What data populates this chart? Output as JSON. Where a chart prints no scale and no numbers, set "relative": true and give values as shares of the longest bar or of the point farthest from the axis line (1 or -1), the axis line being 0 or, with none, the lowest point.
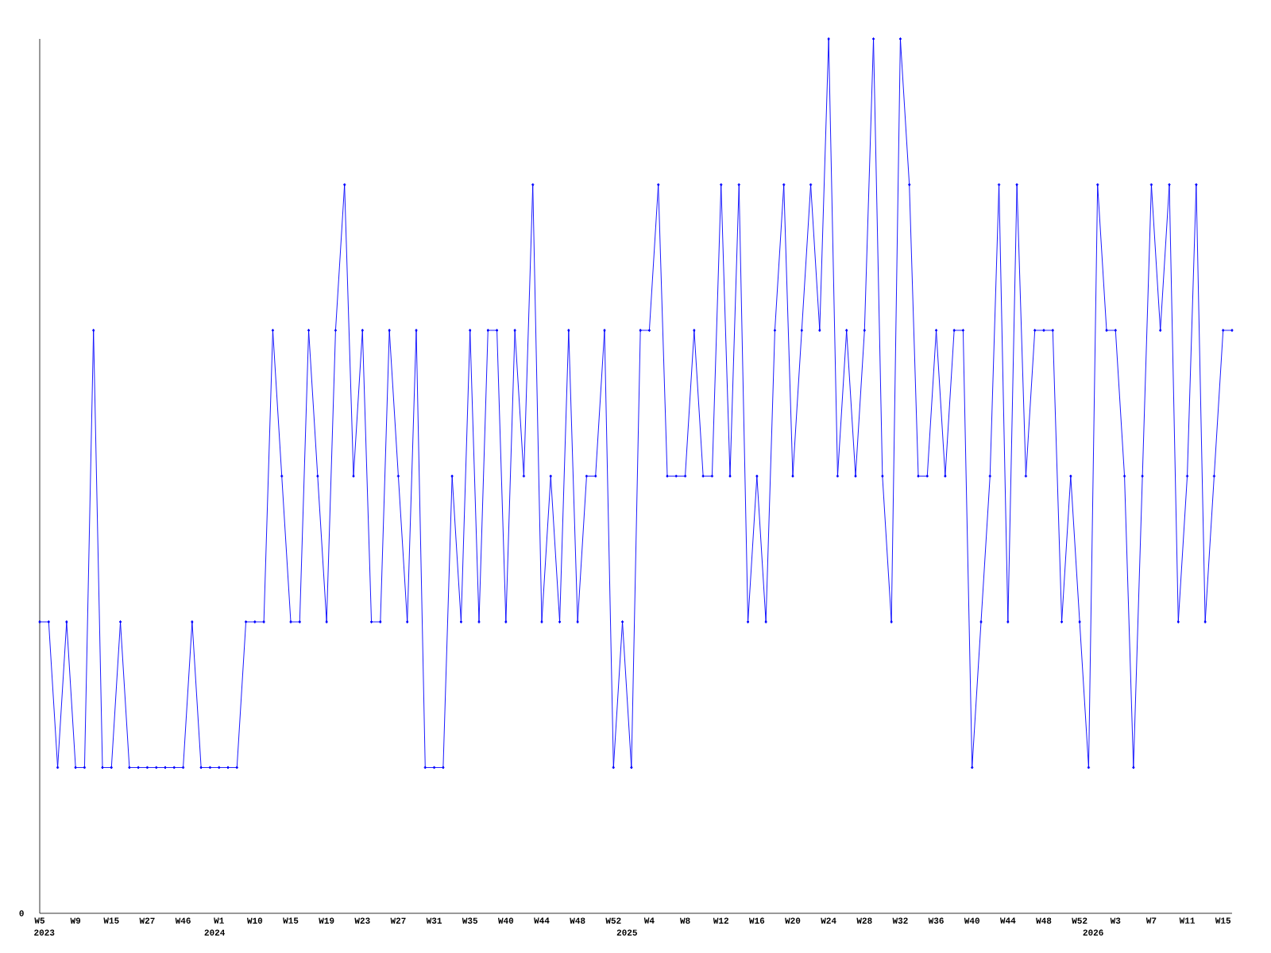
{
  "chart_data": {
    "type": "line",
    "relative": true,
    "color": "#0000ff",
    "marker": "diamond",
    "categories": [
      "W5",
      null,
      null,
      null,
      "W9",
      null,
      null,
      null,
      "W15",
      null,
      null,
      null,
      "W27",
      null,
      null,
      null,
      "W46",
      null,
      null,
      null,
      "W1",
      null,
      null,
      null,
      "W10",
      null,
      null,
      null,
      "W15",
      null,
      null,
      null,
      "W19",
      null,
      null,
      null,
      "W23",
      null,
      null,
      null,
      "W27",
      null,
      null,
      null,
      "W31",
      null,
      null,
      null,
      "W35",
      null,
      null,
      null,
      "W40",
      null,
      null,
      null,
      "W44",
      null,
      null,
      null,
      "W48",
      null,
      null,
      null,
      "W52",
      null,
      null,
      null,
      "W4",
      null,
      null,
      null,
      "W8",
      null,
      null,
      null,
      "W12",
      null,
      null,
      null,
      "W16",
      null,
      null,
      null,
      "W20",
      null,
      null,
      null,
      "W24",
      null,
      null,
      null,
      "W28",
      null,
      null,
      null,
      "W32",
      null,
      null,
      null,
      "W36",
      null,
      null,
      null,
      "W40",
      null,
      null,
      null,
      "W44",
      null,
      null,
      null,
      "W48",
      null,
      null,
      null,
      "W52",
      null,
      null,
      null,
      "W3",
      null,
      null,
      null,
      "W7",
      null,
      null,
      null,
      "W11",
      null,
      null,
      null,
      "W15",
      null
    ],
    "values": [
      0.3333,
      0.3333,
      0.1667,
      0.3333,
      0.1667,
      0.1667,
      0.6667,
      0.1667,
      0.1667,
      0.3333,
      0.1667,
      0.1667,
      0.1667,
      0.1667,
      0.1667,
      0.1667,
      0.1667,
      0.3333,
      0.1667,
      0.1667,
      0.1667,
      0.1667,
      0.1667,
      0.3333,
      0.3333,
      0.3333,
      0.6667,
      0.5,
      0.3333,
      0.3333,
      0.6667,
      0.5,
      0.3333,
      0.6667,
      0.8333,
      0.5,
      0.6667,
      0.3333,
      0.3333,
      0.6667,
      0.5,
      0.3333,
      0.6667,
      0.1667,
      0.1667,
      0.1667,
      0.5,
      0.3333,
      0.6667,
      0.3333,
      0.6667,
      0.6667,
      0.3333,
      0.6667,
      0.5,
      0.8333,
      0.3333,
      0.5,
      0.3333,
      0.6667,
      0.3333,
      0.5,
      0.5,
      0.6667,
      0.1667,
      0.3333,
      0.1667,
      0.6667,
      0.6667,
      0.8333,
      0.5,
      0.5,
      0.5,
      0.6667,
      0.5,
      0.5,
      0.8333,
      0.5,
      0.8333,
      0.3333,
      0.5,
      0.3333,
      0.6667,
      0.8333,
      0.5,
      0.6667,
      0.8333,
      0.6667,
      1,
      0.5,
      0.6667,
      0.5,
      0.6667,
      1,
      0.5,
      0.3333,
      1,
      0.8333,
      0.5,
      0.5,
      0.6667,
      0.5,
      0.6667,
      0.6667,
      0.1667,
      0.3333,
      0.5,
      0.8333,
      0.3333,
      0.8333,
      0.5,
      0.6667,
      0.6667,
      0.6667,
      0.3333,
      0.5,
      0.3333,
      0.1667,
      0.8333,
      0.6667,
      0.6667,
      0.5,
      0.1667,
      0.5,
      0.8333,
      0.6667,
      0.8333,
      0.3333,
      0.5,
      0.8333,
      0.3333,
      0.5,
      0.6667,
      0.6667
    ],
    "annotations": [
      "0",
      "2023",
      "2024",
      "2025",
      "2026"
    ]
  }
}
